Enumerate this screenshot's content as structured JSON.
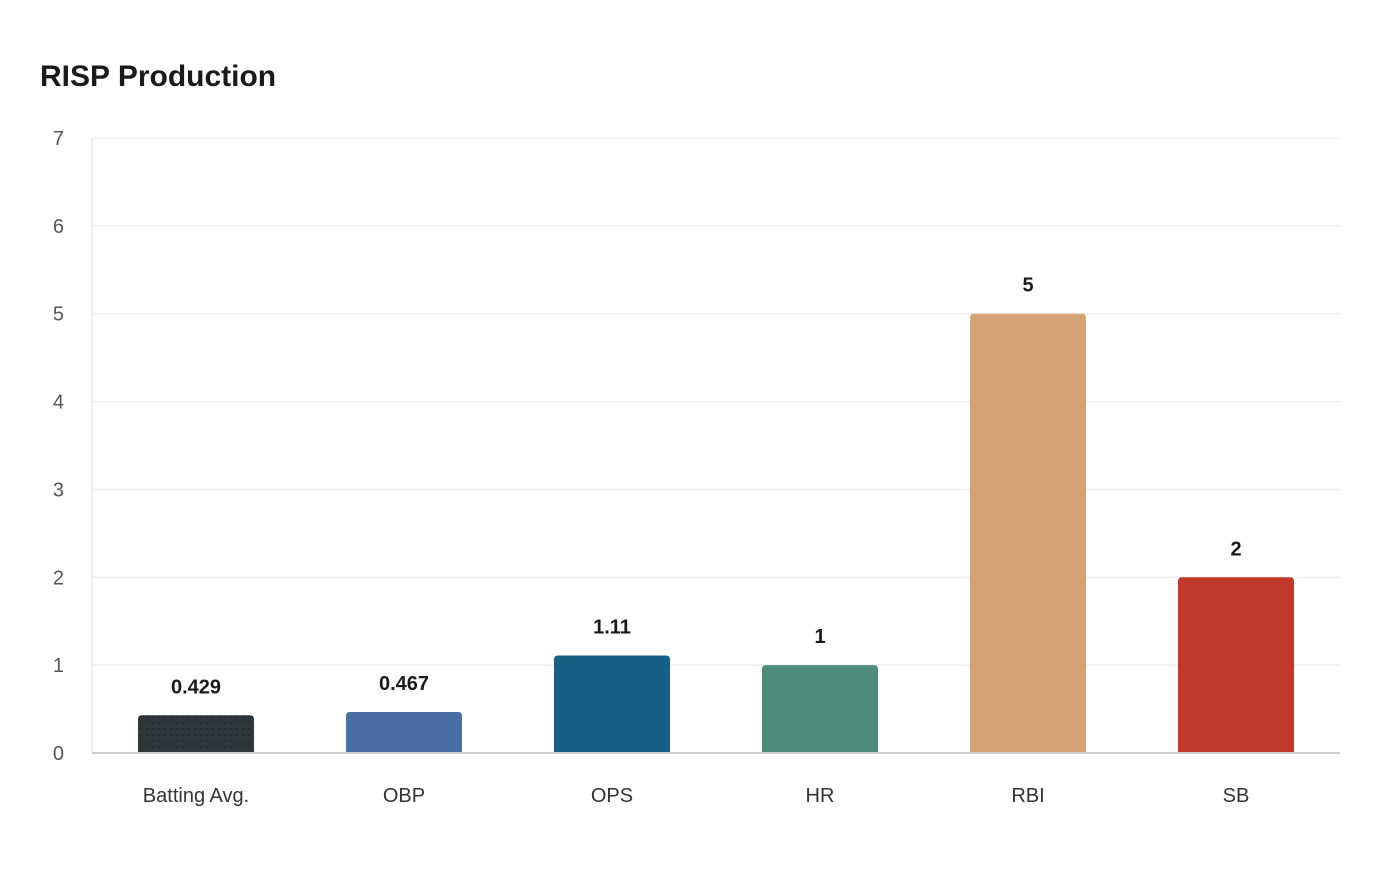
{
  "chart_data": {
    "type": "bar",
    "title": "RISP Production",
    "categories": [
      "Batting Avg.",
      "OBP",
      "OPS",
      "HR",
      "RBI",
      "SB"
    ],
    "values": [
      0.429,
      0.467,
      1.11,
      1,
      5,
      2
    ],
    "data_labels": [
      "0.429",
      "0.467",
      "1.11",
      "1",
      "5",
      "2"
    ],
    "colors": [
      "#2f3538",
      "#4a6fa5",
      "#166086",
      "#4e8c7a",
      "#d4a373",
      "#c0392b"
    ],
    "patterns": [
      "dots",
      "none",
      "none",
      "none",
      "none",
      "none"
    ],
    "ylim": [
      0,
      7
    ],
    "yticks": [
      0,
      1,
      2,
      3,
      4,
      5,
      6,
      7
    ],
    "xlabel": "",
    "ylabel": "",
    "grid": true,
    "legend": "none"
  }
}
